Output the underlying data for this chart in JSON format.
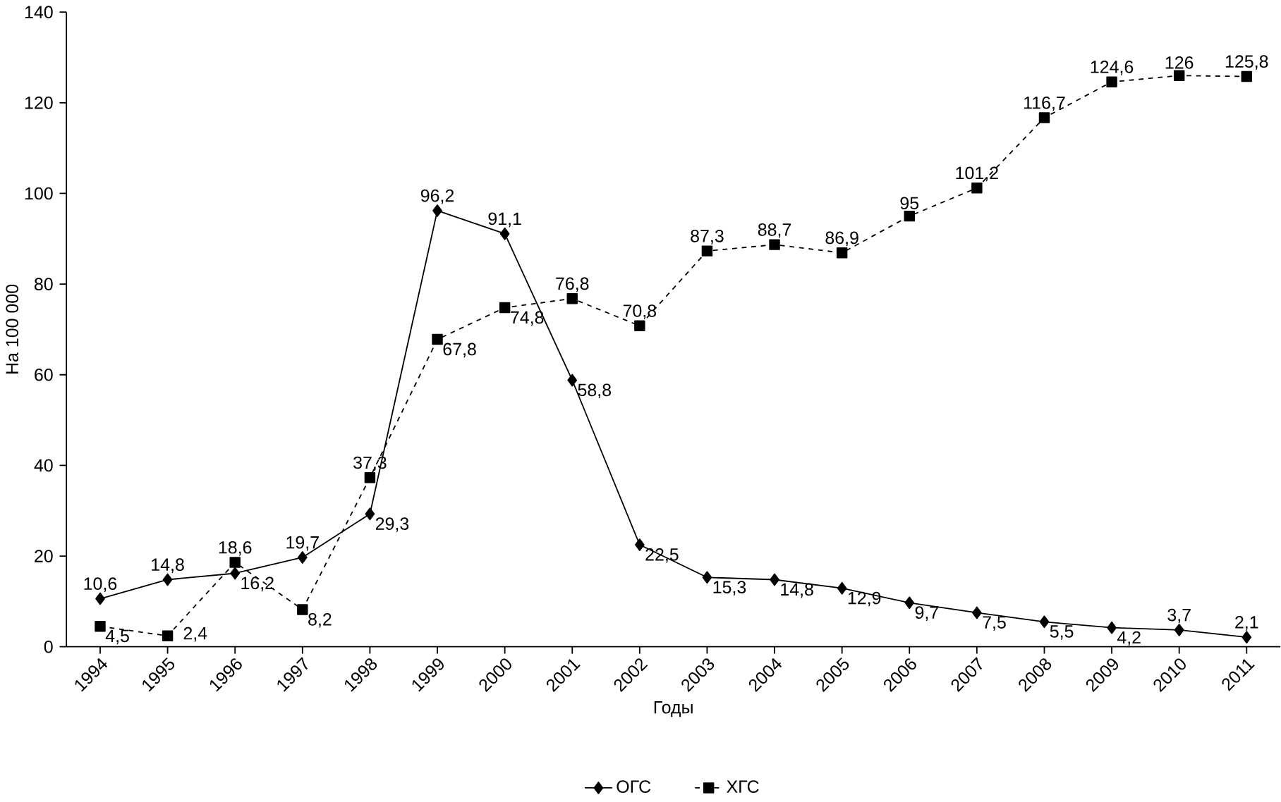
{
  "chart_data": {
    "type": "line",
    "xlabel": "Годы",
    "ylabel": "На 100 000",
    "categories": [
      "1994",
      "1995",
      "1996",
      "1997",
      "1998",
      "1999",
      "2000",
      "2001",
      "2002",
      "2003",
      "2004",
      "2005",
      "2006",
      "2007",
      "2008",
      "2009",
      "2010",
      "2011"
    ],
    "series": [
      {
        "name": "ОГС",
        "color": "#000000",
        "marker": "diamond",
        "line_style": "solid",
        "values": [
          10.6,
          14.8,
          16.2,
          19.7,
          29.3,
          96.2,
          91.1,
          58.8,
          22.5,
          15.3,
          14.8,
          12.9,
          9.7,
          7.5,
          5.5,
          4.2,
          3.7,
          2.1
        ],
        "value_labels": [
          "10,6",
          "14,8",
          "16,2",
          "19,7",
          "29,3",
          "96,2",
          "91,1",
          "58,8",
          "22,5",
          "15,3",
          "14,8",
          "12,9",
          "9,7",
          "7,5",
          "5,5",
          "4,2",
          "3,7",
          "2,1"
        ]
      },
      {
        "name": "ХГС",
        "color": "#000000",
        "marker": "square",
        "line_style": "dashed",
        "values": [
          4.5,
          2.4,
          18.6,
          8.2,
          37.3,
          67.8,
          74.8,
          76.8,
          70.8,
          87.3,
          88.7,
          86.9,
          95,
          101.2,
          116.7,
          124.6,
          126,
          125.8
        ],
        "value_labels": [
          "4,5",
          "2,4",
          "18,6",
          "8,2",
          "37,3",
          "67,8",
          "74,8",
          "76,8",
          "70,8",
          "87,3",
          "88,7",
          "86,9",
          "95",
          "101,2",
          "116,7",
          "124,6",
          "126",
          "125,8"
        ]
      }
    ],
    "ylim": [
      0,
      140
    ],
    "yticks": [
      0,
      20,
      40,
      60,
      80,
      100,
      120,
      140
    ],
    "grid": false,
    "legend": "bottom"
  }
}
